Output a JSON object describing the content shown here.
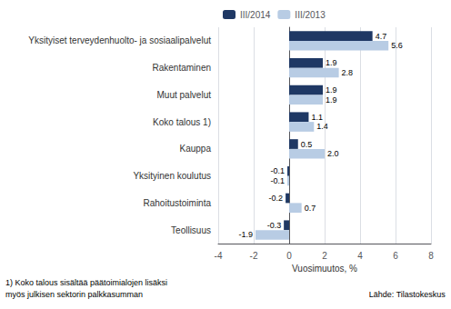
{
  "chart_data": {
    "type": "bar",
    "orientation": "horizontal",
    "categories": [
      "Teollisuus",
      "Rahoitustoiminta",
      "Yksityinen koulutus",
      "Kauppa",
      "Koko talous 1)",
      "Muut palvelut",
      "Rakentaminen",
      "Yksityiset terveydenhuolto- ja sosiaalipalvelut"
    ],
    "series": [
      {
        "name": "III/2014",
        "color": "#1F3864",
        "values": [
          -0.3,
          -0.2,
          -0.1,
          0.5,
          1.1,
          1.9,
          1.9,
          4.7
        ],
        "value_labels": [
          "-0.3",
          "-0.2",
          "-0.1",
          "0.5",
          "1.1",
          "1.9",
          "1.9",
          "4.7"
        ]
      },
      {
        "name": "III/2013",
        "color": "#B8CCE4",
        "values": [
          -1.9,
          0.7,
          -0.1,
          2.0,
          1.4,
          1.9,
          2.8,
          5.6
        ],
        "value_labels": [
          "-1.9",
          "0.7",
          "-0.1",
          "2.0",
          "1.4",
          "1.9",
          "2.8",
          "5.6"
        ]
      }
    ],
    "xlabel": "Vuosimuutos, %",
    "xlim": [
      -4,
      8
    ],
    "xticks": [
      -4,
      -2,
      0,
      2,
      4,
      6,
      8
    ],
    "grid": true,
    "legend": "upper left",
    "data_labels": true,
    "annotations": [
      "1) Koko talous sisältää päätoimialojen lisäksi",
      "myös julkisen sektorin palkkasumman",
      "Lähde: Tilastokeskus"
    ]
  }
}
